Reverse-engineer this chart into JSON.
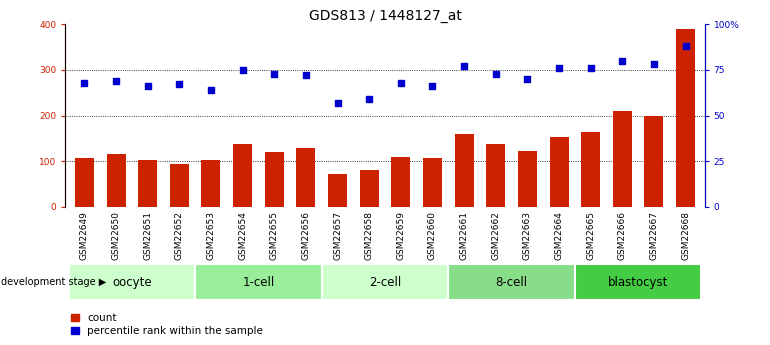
{
  "title": "GDS813 / 1448127_at",
  "samples": [
    "GSM22649",
    "GSM22650",
    "GSM22651",
    "GSM22652",
    "GSM22653",
    "GSM22654",
    "GSM22655",
    "GSM22656",
    "GSM22657",
    "GSM22658",
    "GSM22659",
    "GSM22660",
    "GSM22661",
    "GSM22662",
    "GSM22663",
    "GSM22664",
    "GSM22665",
    "GSM22666",
    "GSM22667",
    "GSM22668"
  ],
  "counts": [
    108,
    115,
    103,
    95,
    103,
    138,
    120,
    130,
    73,
    82,
    110,
    108,
    160,
    138,
    122,
    153,
    165,
    210,
    198,
    390
  ],
  "percentiles": [
    68,
    69,
    66,
    67,
    64,
    75,
    73,
    72,
    57,
    59,
    68,
    66,
    77,
    73,
    70,
    76,
    76,
    80,
    78,
    88
  ],
  "stages": [
    {
      "label": "oocyte",
      "start": 0,
      "end": 4,
      "color": "#ccffcc"
    },
    {
      "label": "1-cell",
      "start": 4,
      "end": 8,
      "color": "#99ee99"
    },
    {
      "label": "2-cell",
      "start": 8,
      "end": 12,
      "color": "#ccffcc"
    },
    {
      "label": "8-cell",
      "start": 12,
      "end": 16,
      "color": "#88dd88"
    },
    {
      "label": "blastocyst",
      "start": 16,
      "end": 20,
      "color": "#44cc44"
    }
  ],
  "bar_color": "#cc2200",
  "dot_color": "#0000cc",
  "left_ylim": [
    0,
    400
  ],
  "right_ylim": [
    0,
    100
  ],
  "left_yticks": [
    0,
    100,
    200,
    300,
    400
  ],
  "right_yticks": [
    0,
    25,
    50,
    75,
    100
  ],
  "right_yticklabels": [
    "0",
    "25",
    "50",
    "75",
    "100%"
  ],
  "grid_values": [
    100,
    200,
    300
  ],
  "background_color": "#ffffff",
  "xlabels_bg_color": "#cccccc",
  "title_fontsize": 10,
  "tick_fontsize": 6.5,
  "legend_fontsize": 7.5,
  "stage_fontsize": 8.5
}
